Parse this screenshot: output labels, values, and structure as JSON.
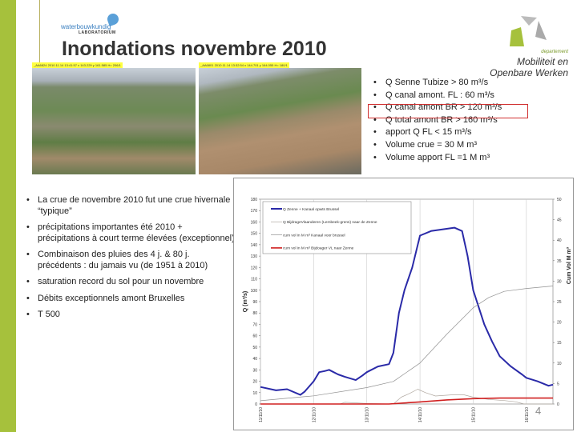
{
  "slide": {
    "title": "Inondations novembre 2010",
    "page_number": "4",
    "logo_left": {
      "line1": "waterbouwkundig",
      "line2": "LABORATORIUM"
    },
    "logo_right": {
      "dept": "departement",
      "line1": "Mobiliteit en",
      "line2": "Openbare Werken"
    },
    "photos": [
      {
        "caption": "_AA6824  2010.11.14 13:41:57  x 143.229 y 161.585   H= 206/1"
      },
      {
        "caption": "_AA6801  2010.11.14 13:32:54  x 144.701 y 164.055   H= 180/1"
      }
    ],
    "right_bullets": [
      "Q Senne Tubize > 80 m³/s",
      "Q canal amont. FL : 60 m³/s",
      "Q canal amont  BR > 120 m³/s",
      "Q total amont BR > 160 m³/s",
      "apport Q FL < 15 m³/s",
      "Volume crue = 30 M m³",
      "Volume apport FL =1 M m³"
    ],
    "highlighted_bullet_index": 2,
    "left_bullets": [
      "La crue de novembre 2010 fut une crue hivernale “typique”",
      "précipitations importantes été 2010 + précipitations à court terme élevées (exceptionnel)",
      "Combinaison des pluies des 4 j. & 80 j. précédents : du jamais vu (de 1951 à 2010)",
      "saturation record du sol pour un novembre",
      "Débits exceptionnels amont  Bruxelles",
      "T 500"
    ],
    "colors": {
      "accent_green": "#a6c13c",
      "highlight_border": "#d03030"
    }
  },
  "chart_data": {
    "type": "line",
    "ylabel": "Q (m³/s)",
    "y2label": "Cum Vol M m³",
    "ylim": [
      0,
      180
    ],
    "yticks": [
      0,
      10,
      20,
      30,
      40,
      50,
      60,
      70,
      80,
      90,
      100,
      110,
      120,
      130,
      140,
      150,
      160,
      170,
      180
    ],
    "y2lim": [
      0,
      50
    ],
    "y2ticks": [
      0,
      5,
      10,
      15,
      20,
      25,
      30,
      35,
      40,
      45,
      50
    ],
    "xlim": [
      "2010-11-11T00:00",
      "2010-11-16T12:00"
    ],
    "xticks": [
      {
        "x": "2010-11-11T00:00",
        "label": "11/11/10"
      },
      {
        "x": "2010-11-12T00:00",
        "label": "12/11/10"
      },
      {
        "x": "2010-11-13T00:00",
        "label": "13/11/10"
      },
      {
        "x": "2010-11-14T00:00",
        "label": "14/11/10"
      },
      {
        "x": "2010-11-15T00:00",
        "label": "15/11/10"
      },
      {
        "x": "2010-11-16T00:00",
        "label": "16/11/10"
      }
    ],
    "grid": "vertical",
    "legend": "top-left",
    "series": [
      {
        "name": "Q Zenne + Kanaal opwts Brussel",
        "axis": "left",
        "color": "#2a2aa8",
        "points": [
          [
            "2010-11-11T00:00",
            15
          ],
          [
            "2010-11-11T07:00",
            12
          ],
          [
            "2010-11-11T12:00",
            13
          ],
          [
            "2010-11-11T18:00",
            8
          ],
          [
            "2010-11-11T20:00",
            11
          ],
          [
            "2010-11-12T00:00",
            20
          ],
          [
            "2010-11-12T02:30",
            28
          ],
          [
            "2010-11-12T05:00",
            29
          ],
          [
            "2010-11-12T07:00",
            30
          ],
          [
            "2010-11-12T11:00",
            26
          ],
          [
            "2010-11-12T14:00",
            24
          ],
          [
            "2010-11-12T19:00",
            21
          ],
          [
            "2010-11-12T22:00",
            25
          ],
          [
            "2010-11-13T00:00",
            28
          ],
          [
            "2010-11-13T05:00",
            33
          ],
          [
            "2010-11-13T10:00",
            35
          ],
          [
            "2010-11-13T12:00",
            45
          ],
          [
            "2010-11-13T14:30",
            80
          ],
          [
            "2010-11-13T17:00",
            100
          ],
          [
            "2010-11-13T20:30",
            120
          ],
          [
            "2010-11-14T00:00",
            148
          ],
          [
            "2010-11-14T05:00",
            152
          ],
          [
            "2010-11-14T12:00",
            154
          ],
          [
            "2010-11-14T15:30",
            155
          ],
          [
            "2010-11-14T19:00",
            152
          ],
          [
            "2010-11-14T21:30",
            130
          ],
          [
            "2010-11-15T00:00",
            100
          ],
          [
            "2010-11-15T05:00",
            70
          ],
          [
            "2010-11-15T08:30",
            55
          ],
          [
            "2010-11-15T12:00",
            42
          ],
          [
            "2010-11-15T17:00",
            33
          ],
          [
            "2010-11-15T22:00",
            26
          ],
          [
            "2010-11-16T00:00",
            23
          ],
          [
            "2010-11-16T05:00",
            20
          ],
          [
            "2010-11-16T10:00",
            16
          ],
          [
            "2010-11-16T12:00",
            17
          ]
        ]
      },
      {
        "name": "Q BijdrageVlaanderen (Lembeek-grens)  naar de Zenne",
        "axis": "left",
        "color": "#b0a8a0",
        "points": [
          [
            "2010-11-11T00:00",
            0
          ],
          [
            "2010-11-12T12:00",
            0
          ],
          [
            "2010-11-12T14:00",
            1.5
          ],
          [
            "2010-11-13T00:00",
            0.5
          ],
          [
            "2010-11-13T10:00",
            0
          ],
          [
            "2010-11-13T12:00",
            0
          ],
          [
            "2010-11-13T15:30",
            6
          ],
          [
            "2010-11-13T19:00",
            9
          ],
          [
            "2010-11-13T23:00",
            13
          ],
          [
            "2010-11-14T02:30",
            10
          ],
          [
            "2010-11-14T07:00",
            7
          ],
          [
            "2010-11-14T14:00",
            8
          ],
          [
            "2010-11-14T20:00",
            8
          ],
          [
            "2010-11-15T00:00",
            6
          ],
          [
            "2010-11-15T07:00",
            4
          ],
          [
            "2010-11-15T14:00",
            3
          ],
          [
            "2010-11-15T19:00",
            2
          ],
          [
            "2010-11-15T23:00",
            0
          ],
          [
            "2010-11-16T12:00",
            0
          ]
        ]
      },
      {
        "name": "cum vol in M m³ Kanaal voor brussel",
        "axis": "right",
        "color": "#909090",
        "points": [
          [
            "2010-11-11T00:00",
            0.8
          ],
          [
            "2010-11-12T00:00",
            2
          ],
          [
            "2010-11-13T00:00",
            4
          ],
          [
            "2010-11-13T12:00",
            5.5
          ],
          [
            "2010-11-14T00:00",
            10
          ],
          [
            "2010-11-14T12:00",
            17
          ],
          [
            "2010-11-15T00:00",
            23.5
          ],
          [
            "2010-11-15T07:00",
            26
          ],
          [
            "2010-11-15T14:00",
            27.5
          ],
          [
            "2010-11-16T00:00",
            28.2
          ],
          [
            "2010-11-16T12:00",
            28.8
          ]
        ]
      },
      {
        "name": "cum vol in M m³ Bijdoager VL naar Zenne",
        "axis": "right",
        "color": "#d02020",
        "points": [
          [
            "2010-11-11T00:00",
            0
          ],
          [
            "2010-11-13T10:00",
            0
          ],
          [
            "2010-11-14T00:00",
            0.5
          ],
          [
            "2010-11-14T12:00",
            1
          ],
          [
            "2010-11-15T00:00",
            1.3
          ],
          [
            "2010-11-15T12:00",
            1.45
          ],
          [
            "2010-11-16T12:00",
            1.45
          ]
        ]
      }
    ]
  }
}
